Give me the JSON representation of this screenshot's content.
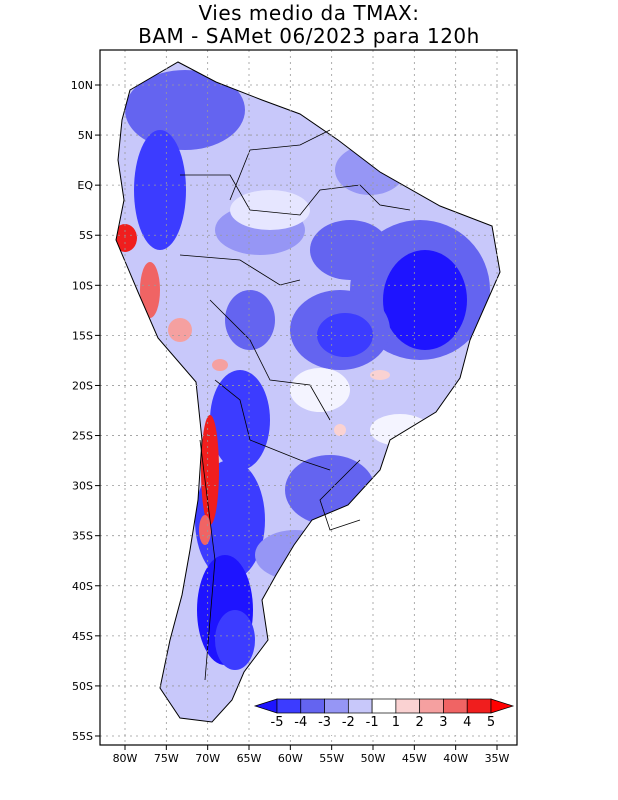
{
  "title": {
    "line1": "Vies medio da TMAX:",
    "line2": "BAM  -  SAMet 06/2023   para 120h"
  },
  "chart_data": {
    "type": "map",
    "variable": "TMAX bias",
    "region": "South America",
    "lon_range": [
      -84,
      -34
    ],
    "lat_range": [
      -56,
      13
    ],
    "x_ticks": [
      {
        "lon": -80,
        "label": "80W"
      },
      {
        "lon": -75,
        "label": "75W"
      },
      {
        "lon": -70,
        "label": "70W"
      },
      {
        "lon": -65,
        "label": "65W"
      },
      {
        "lon": -60,
        "label": "60W"
      },
      {
        "lon": -55,
        "label": "55W"
      },
      {
        "lon": -50,
        "label": "50W"
      },
      {
        "lon": -45,
        "label": "45W"
      },
      {
        "lon": -40,
        "label": "40W"
      },
      {
        "lon": -35,
        "label": "35W"
      }
    ],
    "y_ticks": [
      {
        "lat": 10,
        "label": "10N"
      },
      {
        "lat": 5,
        "label": "5N"
      },
      {
        "lat": 0,
        "label": "EQ"
      },
      {
        "lat": -5,
        "label": "5S"
      },
      {
        "lat": -10,
        "label": "10S"
      },
      {
        "lat": -15,
        "label": "15S"
      },
      {
        "lat": -20,
        "label": "20S"
      },
      {
        "lat": -25,
        "label": "25S"
      },
      {
        "lat": -30,
        "label": "30S"
      },
      {
        "lat": -35,
        "label": "35S"
      },
      {
        "lat": -40,
        "label": "40S"
      },
      {
        "lat": -45,
        "label": "45S"
      },
      {
        "lat": -50,
        "label": "50S"
      },
      {
        "lat": -55,
        "label": "55S"
      }
    ],
    "colorbar": {
      "labels": [
        "-5",
        "-4",
        "-3",
        "-2",
        "-1",
        "1",
        "2",
        "3",
        "4",
        "5"
      ],
      "colors": [
        "#1e14ff",
        "#3c3cff",
        "#6464f0",
        "#9696f5",
        "#c8c8fa",
        "#ffffff",
        "#fad2d2",
        "#f5a0a0",
        "#f06464",
        "#f01e1e",
        "#ff0000"
      ]
    }
  }
}
